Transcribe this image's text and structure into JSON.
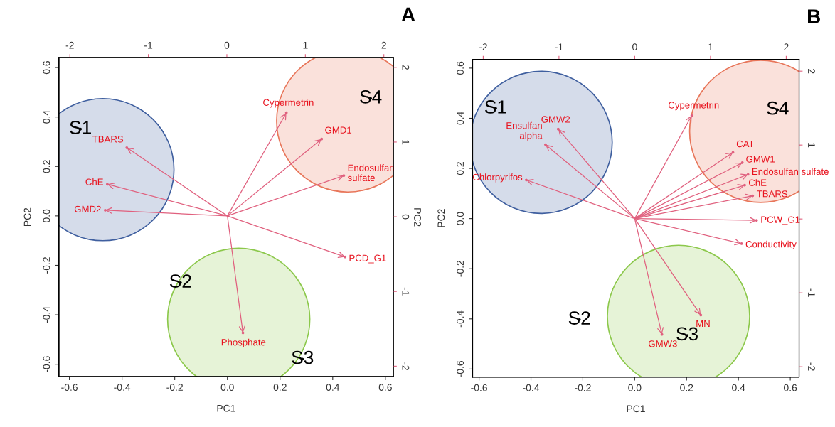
{
  "chart_data": [
    {
      "type": "scatter",
      "xlabel": "PC1",
      "ylabel": "PC2",
      "y2label": "PC2",
      "xlim": [
        -0.64,
        0.63
      ],
      "ylim": [
        -0.65,
        0.64
      ],
      "xticks": [
        -0.6,
        -0.4,
        -0.2,
        {
          "value": 0,
          "label": "0.0"
        },
        0.2,
        0.4,
        0.6
      ],
      "yticks": [
        -0.6,
        -0.4,
        -0.2,
        {
          "value": 0,
          "label": "0.0"
        },
        0.2,
        0.4,
        0.6
      ],
      "x2lim": [
        -2.14,
        2.12
      ],
      "x2ticks": [
        -2,
        -1,
        0,
        1,
        2
      ],
      "y2lim": [
        -2.14,
        2.13
      ],
      "y2ticks": [
        -2,
        -1,
        0,
        1,
        2
      ],
      "series": [
        {
          "type": "bubble",
          "color": "#3f5f9f",
          "x": [
            -0.473
          ],
          "values": [
            0.187
          ],
          "sizes": [
            1
          ]
        },
        {
          "type": "bubble",
          "color": "#e8765a",
          "x": [
            0.457
          ],
          "values": [
            0.384
          ],
          "sizes": [
            1
          ]
        },
        {
          "type": "bubble",
          "color": "#8cc84b",
          "x": [
            0.043
          ],
          "values": [
            -0.418
          ],
          "sizes": [
            1
          ]
        },
        {
          "marker": "circle",
          "line_style": "solid",
          "color": "#e0607e",
          "x": [
            -0.382,
            -0.456,
            -0.464,
            0.224,
            0.358,
            0.442,
            0.447,
            0.059
          ],
          "values": [
            0.276,
            0.128,
            0.023,
            0.417,
            0.311,
            0.163,
            -0.166,
            -0.473
          ],
          "value_labels": [
            "TBARS",
            "ChE",
            "GMD2",
            "Cypermetrin",
            "GMD1",
            "Endosulfan\nsulfate",
            "PCD_G1",
            "Phosphate"
          ]
        },
        {
          "marker": "circle",
          "color": "#000000",
          "x": [
            -0.558,
            0.544,
            -0.178,
            0.285
          ],
          "values": [
            0.351,
            0.475,
            -0.27,
            -0.579
          ],
          "value_labels": [
            "S1",
            "S4",
            "S2",
            "S3"
          ]
        }
      ],
      "annotations": [
        "A"
      ]
    },
    {
      "type": "scatter",
      "xlabel": "PC1",
      "ylabel": "PC2",
      "xlim": [
        -0.625,
        0.634
      ],
      "ylim": [
        -0.632,
        0.635
      ],
      "xticks": [
        -0.6,
        -0.4,
        -0.2,
        {
          "value": 0,
          "label": "0.0"
        },
        0.2,
        0.4,
        0.6
      ],
      "yticks": [
        -0.6,
        -0.4,
        -0.2,
        {
          "value": 0,
          "label": "0.0"
        },
        0.2,
        0.4,
        0.6
      ],
      "x2lim": [
        -2.14,
        2.17
      ],
      "x2ticks": [
        -2,
        -1,
        0,
        1,
        2
      ],
      "y2lim": [
        -2.14,
        2.16
      ],
      "y2ticks": [
        -2,
        -1,
        {
          "value": 0,
          "label": null
        },
        1,
        2
      ],
      "series": [
        {
          "type": "bubble",
          "color": "#3f5f9f",
          "x": [
            -0.361
          ],
          "values": [
            0.304
          ],
          "sizes": [
            1
          ]
        },
        {
          "type": "bubble",
          "color": "#e8765a",
          "x": [
            0.486
          ],
          "values": [
            0.348
          ],
          "sizes": [
            1
          ]
        },
        {
          "type": "bubble",
          "color": "#8cc84b",
          "x": [
            0.169
          ],
          "values": [
            -0.39
          ],
          "sizes": [
            1
          ]
        },
        {
          "marker": "circle",
          "line_style": "solid",
          "color": "#e0607e",
          "x": [
            0.22,
            -0.295,
            -0.344,
            -0.418,
            0.379,
            0.415,
            0.437,
            0.424,
            0.455,
            0.47,
            0.412,
            0.105,
            0.255
          ],
          "values": [
            0.411,
            0.357,
            0.295,
            0.154,
            0.264,
            0.223,
            0.176,
            0.133,
            0.091,
            -0.007,
            -0.1,
            -0.462,
            -0.385
          ],
          "value_labels": [
            "Cypermetrin",
            "GMW2",
            "Ensulfan\nalpha",
            "Chlorpyrifos",
            "CAT",
            "GMW1",
            "Endosulfan sulfate",
            "ChE",
            "TBARS",
            "PCW_G1",
            "Conductivity",
            "GMW3",
            "MN"
          ]
        },
        {
          "marker": "circle",
          "color": "#000000",
          "x": [
            -0.536,
            0.551,
            -0.213,
            0.202
          ],
          "values": [
            0.439,
            0.434,
            -0.403,
            -0.466
          ],
          "value_labels": [
            "S1",
            "S4",
            "S2",
            "S3"
          ]
        }
      ],
      "annotations": [
        "B"
      ]
    }
  ]
}
